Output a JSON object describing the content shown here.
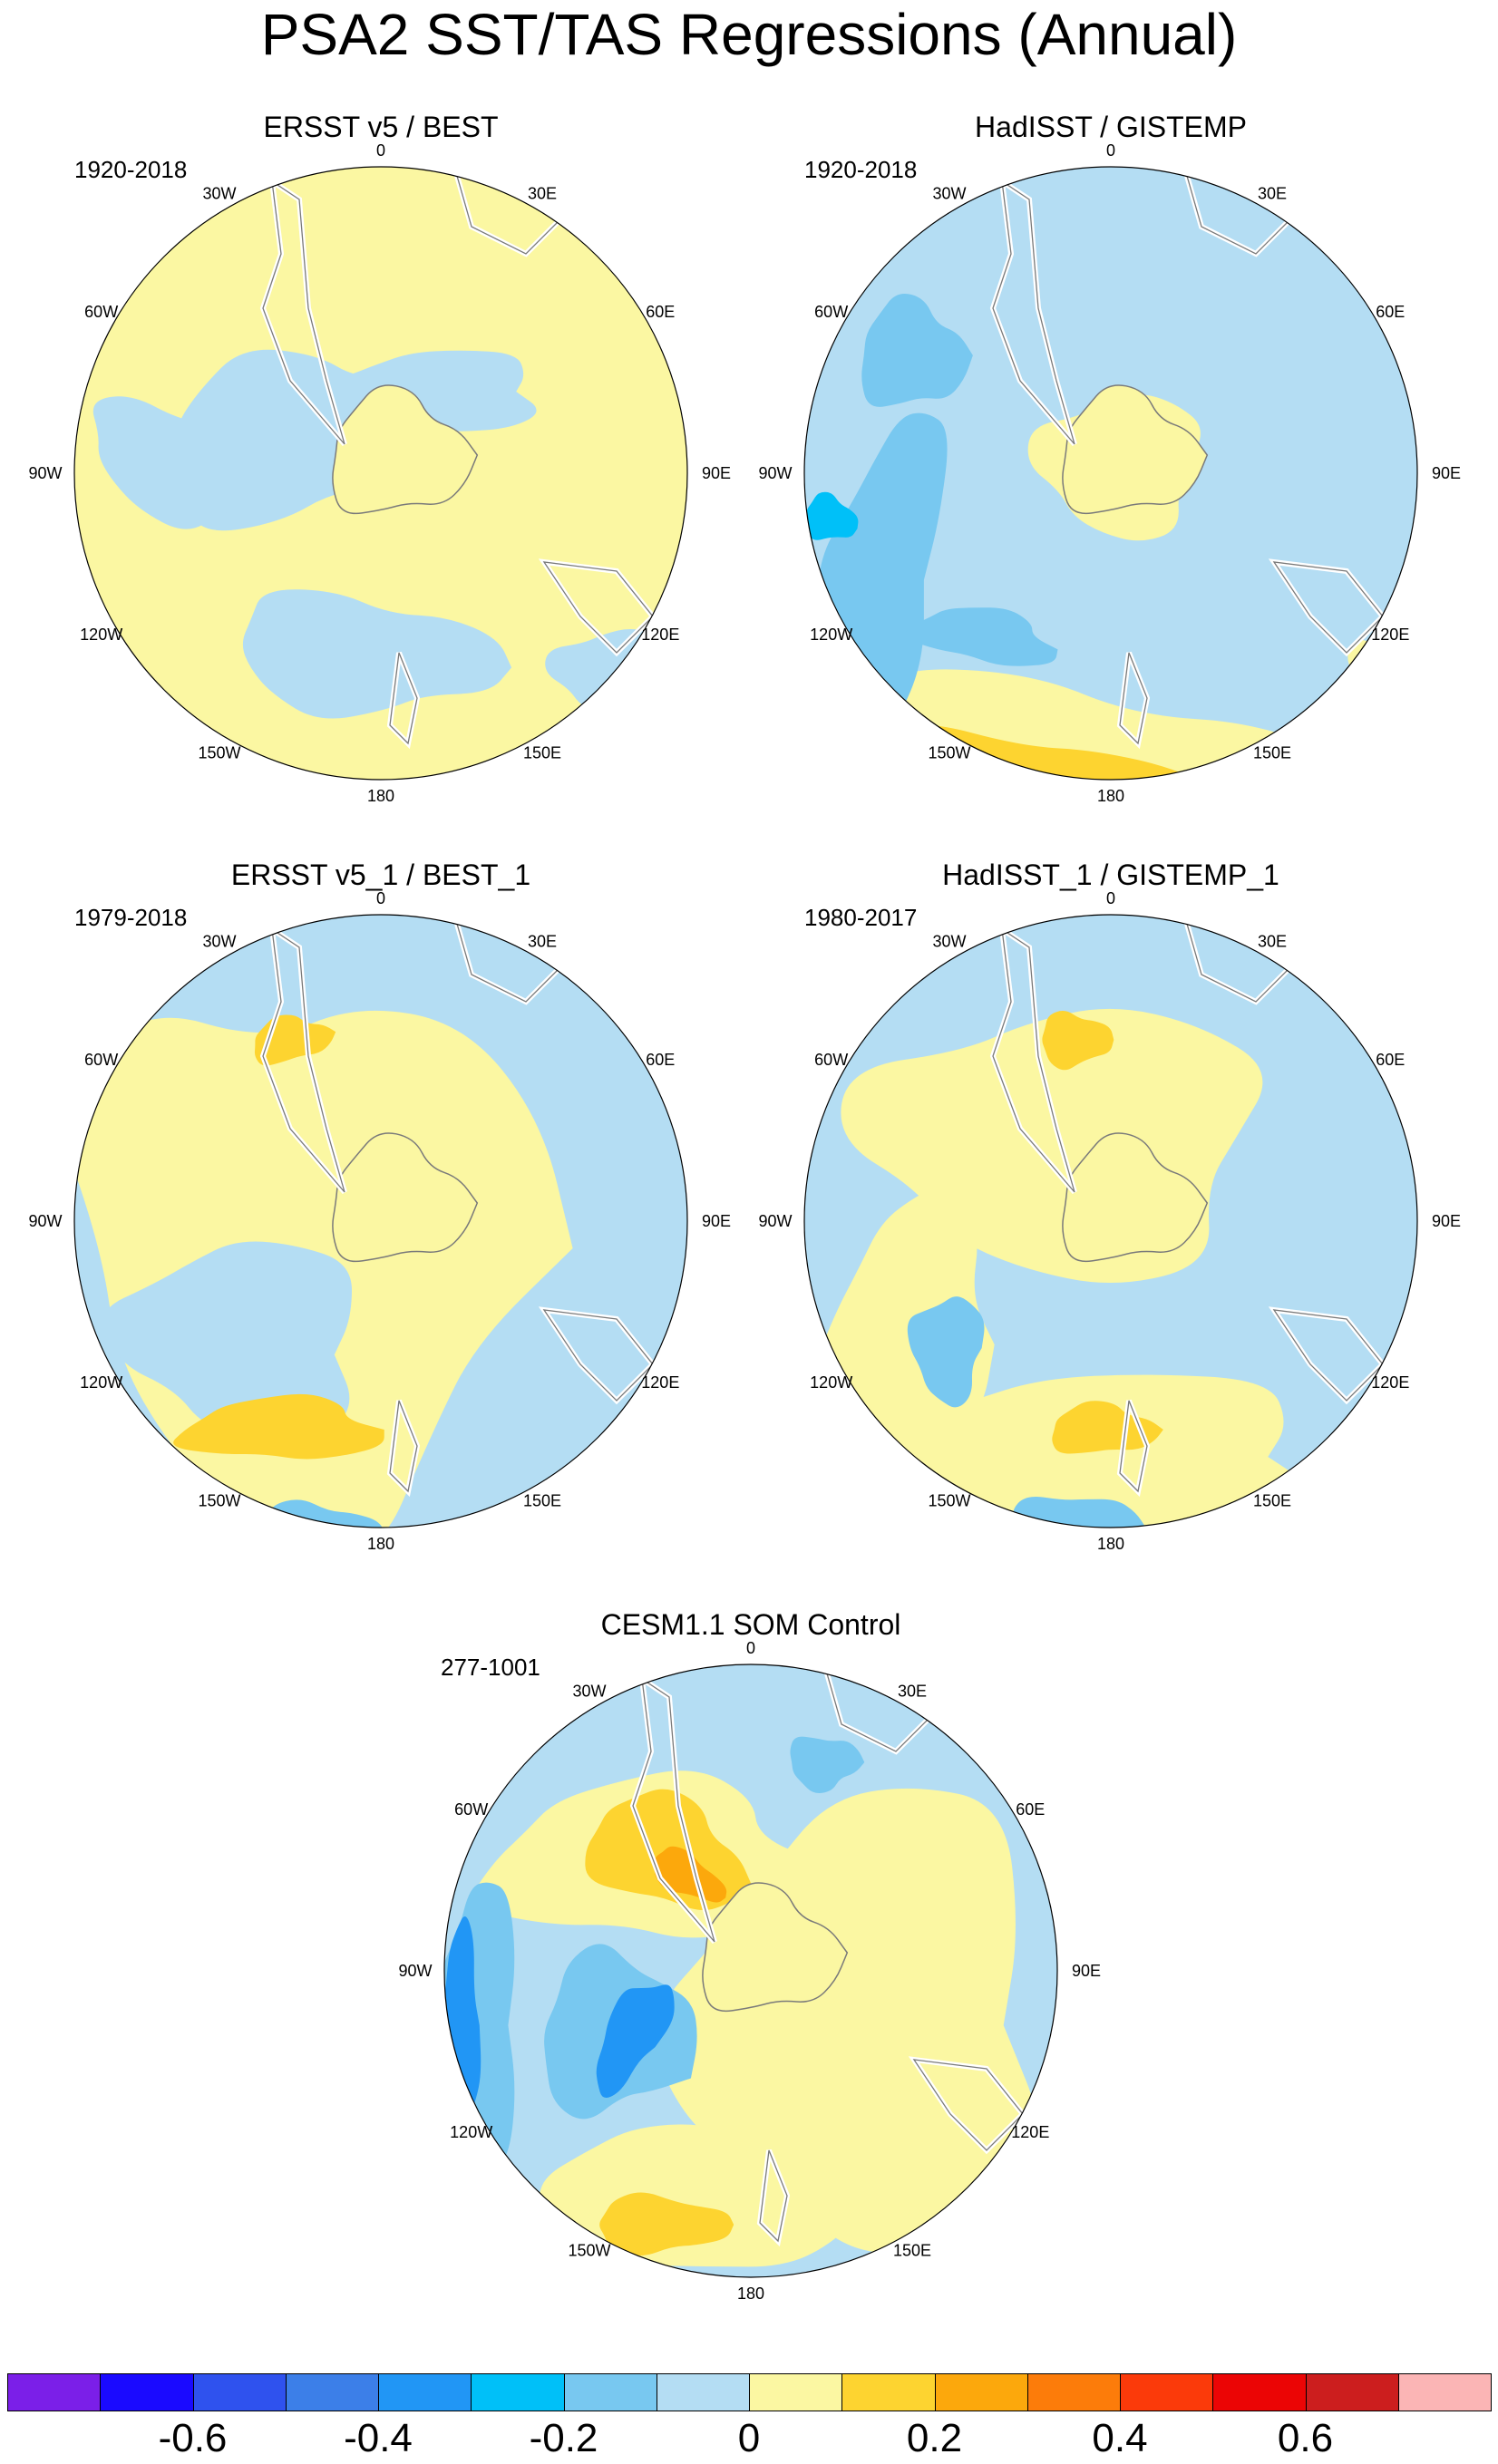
{
  "title": "PSA2 SST/TAS Regressions (Annual)",
  "panels": [
    {
      "title": "ERSST v5 / BEST",
      "period": "1920-2018"
    },
    {
      "title": "HadISST / GISTEMP",
      "period": "1920-2018"
    },
    {
      "title": "ERSST v5_1 / BEST_1",
      "period": "1979-2018"
    },
    {
      "title": "HadISST_1 / GISTEMP_1",
      "period": "1980-2017"
    },
    {
      "title": "CESM1.1 SOM Control",
      "period": "277-1001"
    }
  ],
  "longitude_labels": [
    "0",
    "30E",
    "60E",
    "90E",
    "120E",
    "150E",
    "180",
    "150W",
    "120W",
    "90W",
    "60W",
    "30W"
  ],
  "colorbar": {
    "colors": [
      "#7b1fe8",
      "#1a0aff",
      "#2f52ee",
      "#3c7fe8",
      "#2196f5",
      "#00c0f8",
      "#78c8f0",
      "#b4ddf3",
      "#fbf7a2",
      "#fdd430",
      "#fca80c",
      "#fc7c0a",
      "#fb3a0a",
      "#eb0505",
      "#cc1e1e",
      "#fbb5b5"
    ],
    "labels": [
      "-0.6",
      "-0.4",
      "-0.2",
      "0",
      "0.2",
      "0.4",
      "0.6"
    ],
    "label_boundary_index": [
      2,
      4,
      6,
      8,
      10,
      12,
      14
    ]
  },
  "map_colors": {
    "ocean_pos_weak": "#fbf7a2",
    "pos_mid": "#fdd430",
    "pos_strong": "#fca80c",
    "pos_max": "#fc7c0a",
    "neg_weak": "#b4ddf3",
    "neg_mid": "#78c8f0",
    "neg_strong": "#2196f5",
    "neg_max": "#00c0f8",
    "coast": "#7a7a7a"
  }
}
